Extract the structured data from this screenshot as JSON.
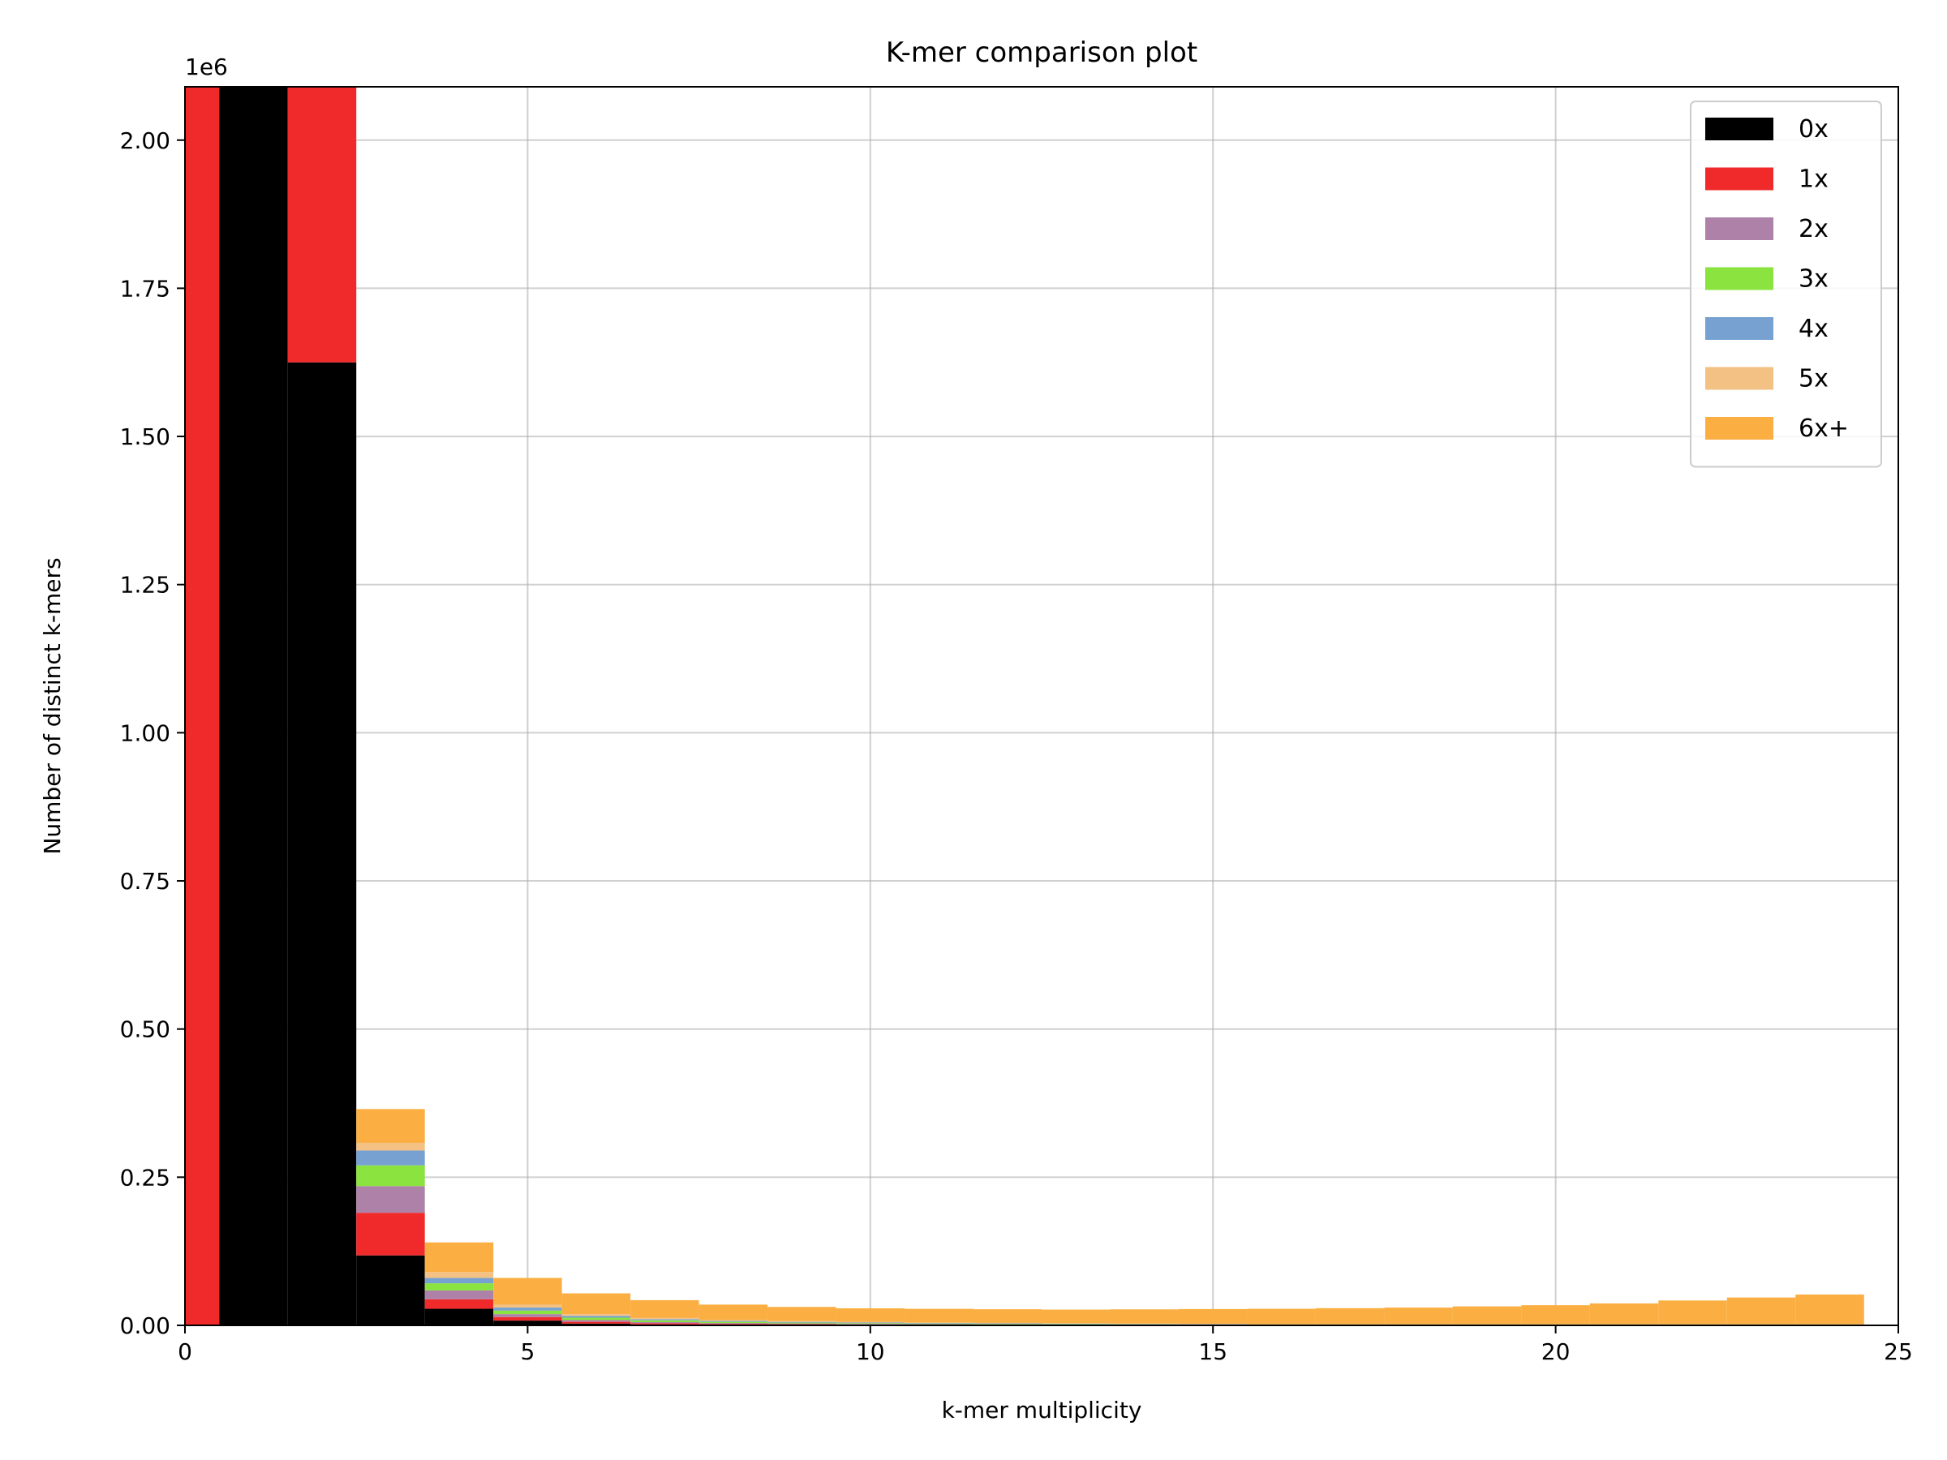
{
  "chart_data": {
    "type": "bar",
    "title": "K-mer comparison plot",
    "xlabel": "k-mer multiplicity",
    "ylabel": "Number of distinct k-mers",
    "y_offset_label": "1e6",
    "xlim": [
      0,
      25
    ],
    "ylim": [
      0,
      2090000
    ],
    "x_ticks": [
      0,
      5,
      10,
      15,
      20,
      25
    ],
    "y_ticks": [
      0,
      250000,
      500000,
      750000,
      1000000,
      1250000,
      1500000,
      1750000,
      2000000
    ],
    "y_tick_labels": [
      "0.00",
      "0.25",
      "0.50",
      "0.75",
      "1.00",
      "1.25",
      "1.50",
      "1.75",
      "2.00"
    ],
    "grid": true,
    "legend_position": "top-right",
    "stacked": true,
    "x": [
      0,
      1,
      2,
      3,
      4,
      5,
      6,
      7,
      8,
      9,
      10,
      11,
      12,
      13,
      14,
      15,
      16,
      17,
      18,
      19,
      20,
      21,
      22,
      23,
      24
    ],
    "series": [
      {
        "name": "0x",
        "color": "#000000",
        "values": [
          0,
          2090000,
          1625000,
          118000,
          28000,
          8000,
          3000,
          1500,
          1000,
          800,
          600,
          500,
          400,
          300,
          200,
          200,
          100,
          100,
          100,
          100,
          100,
          100,
          100,
          100,
          100
        ]
      },
      {
        "name": "1x",
        "color": "#f02a2a",
        "values": [
          2090000,
          0,
          465000,
          72000,
          16000,
          6000,
          3000,
          2000,
          1500,
          1200,
          1000,
          800,
          700,
          600,
          500,
          400,
          300,
          300,
          300,
          300,
          300,
          300,
          300,
          300,
          300
        ]
      },
      {
        "name": "2x",
        "color": "#ae82a8",
        "values": [
          0,
          0,
          0,
          45000,
          15000,
          5000,
          3000,
          2000,
          1500,
          1200,
          1000,
          800,
          700,
          600,
          500,
          400,
          300,
          300,
          300,
          300,
          300,
          300,
          300,
          300,
          300
        ]
      },
      {
        "name": "3x",
        "color": "#8ae33e",
        "values": [
          0,
          0,
          0,
          35000,
          12000,
          6000,
          4000,
          3000,
          2000,
          1500,
          1200,
          1000,
          800,
          700,
          600,
          500,
          400,
          400,
          400,
          400,
          400,
          400,
          400,
          400,
          400
        ]
      },
      {
        "name": "4x",
        "color": "#77a1d1",
        "values": [
          0,
          0,
          0,
          25000,
          9000,
          5000,
          3000,
          2000,
          1500,
          1200,
          1000,
          900,
          800,
          700,
          600,
          500,
          400,
          400,
          400,
          400,
          400,
          400,
          400,
          400,
          400
        ]
      },
      {
        "name": "5x",
        "color": "#f3c184",
        "values": [
          0,
          0,
          0,
          13000,
          10000,
          5000,
          3000,
          2000,
          1500,
          1200,
          1000,
          900,
          800,
          700,
          600,
          500,
          500,
          500,
          500,
          500,
          500,
          500,
          500,
          500,
          500
        ]
      },
      {
        "name": "6x+",
        "color": "#fbae42",
        "values": [
          0,
          0,
          0,
          57000,
          50000,
          45000,
          35000,
          30000,
          26000,
          24000,
          23000,
          23000,
          23000,
          23000,
          24000,
          25000,
          26000,
          27000,
          28000,
          30000,
          32000,
          35000,
          40000,
          45000,
          50000
        ]
      }
    ]
  }
}
